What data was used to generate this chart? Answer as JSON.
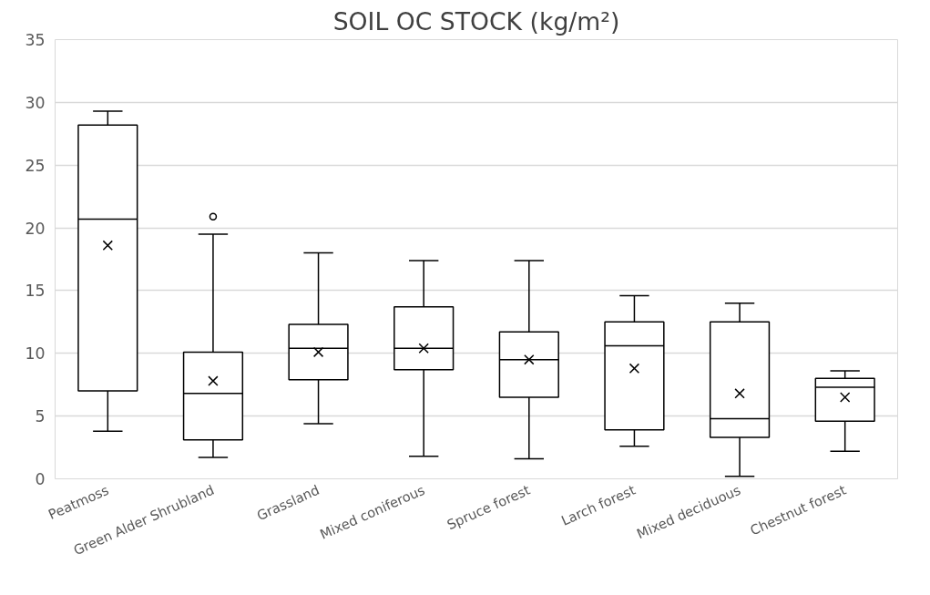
{
  "chart_data": {
    "type": "box",
    "title": "SOIL OC STOCK (kg/m²)",
    "categories": [
      "Peatmoss",
      "Green Alder Shrubland",
      "Grassland",
      "Mixed coniferous",
      "Spruce forest",
      "Larch forest",
      "Mixed deciduous",
      "Chestnut forest"
    ],
    "boxes": [
      {
        "low": 3.8,
        "q1": 7.0,
        "median": 20.7,
        "q3": 28.2,
        "high": 29.3,
        "mean": 18.6
      },
      {
        "low": 1.7,
        "q1": 3.1,
        "median": 6.8,
        "q3": 10.1,
        "high": 19.5,
        "mean": 7.8,
        "outliers": [
          20.9
        ]
      },
      {
        "low": 4.4,
        "q1": 7.9,
        "median": 10.4,
        "q3": 12.3,
        "high": 18.0,
        "mean": 10.1
      },
      {
        "low": 1.8,
        "q1": 8.7,
        "median": 10.4,
        "q3": 13.7,
        "high": 17.4,
        "mean": 10.4
      },
      {
        "low": 1.6,
        "q1": 6.5,
        "median": 9.5,
        "q3": 11.7,
        "high": 17.4,
        "mean": 9.5
      },
      {
        "low": 2.6,
        "q1": 3.9,
        "median": 10.6,
        "q3": 12.5,
        "high": 14.6,
        "mean": 8.8
      },
      {
        "low": 0.2,
        "q1": 3.3,
        "median": 4.8,
        "q3": 12.5,
        "high": 14.0,
        "mean": 6.8
      },
      {
        "low": 2.2,
        "q1": 4.6,
        "median": 7.3,
        "q3": 8.0,
        "high": 8.6,
        "mean": 6.5
      }
    ],
    "color": "#000000",
    "ylim": [
      0,
      35
    ],
    "yticks": [
      0,
      5,
      10,
      15,
      20,
      25,
      30,
      35
    ],
    "grid": "y"
  }
}
